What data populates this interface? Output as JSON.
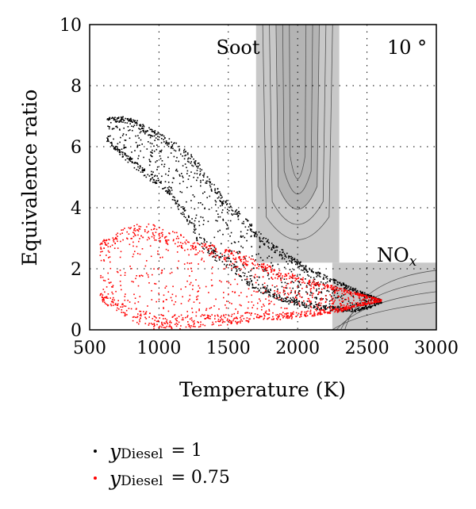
{
  "chart_data": {
    "type": "scatter",
    "title": "",
    "xlabel": "Temperature (K)",
    "ylabel": "Equivalence ratio",
    "xlim": [
      500,
      3000
    ],
    "ylim": [
      0,
      10
    ],
    "xticks": [
      "500",
      "1000",
      "1500",
      "2000",
      "2500",
      "3000"
    ],
    "yticks": [
      "0",
      "2",
      "4",
      "6",
      "8",
      "10"
    ],
    "grid": true,
    "grid_style": "dotted",
    "annotations": {
      "soot": "Soot",
      "angle": "10 °",
      "nox_main": "NO",
      "nox_sub": "x"
    },
    "regions": [
      {
        "name": "Soot",
        "x_range": [
          1700,
          2300
        ],
        "y_range": [
          2.2,
          10
        ],
        "color": "#c8c8c8"
      },
      {
        "name": "NOx",
        "x_range": [
          2250,
          3000
        ],
        "y_range": [
          0,
          2.2
        ],
        "color": "#c8c8c8"
      }
    ],
    "series": [
      {
        "name_main": "y",
        "name_sub": "Diesel",
        "name_value": "= 1",
        "color": "#000000",
        "envelope": {
          "T": [
            620,
            700,
            800,
            900,
            1000,
            1100,
            1200,
            1300,
            1400,
            1500,
            1600,
            1700,
            1800,
            1900,
            2000,
            2100,
            2200,
            2300,
            2400,
            2500,
            2600
          ],
          "upper": [
            7.0,
            7.0,
            7.0,
            6.7,
            6.5,
            6.2,
            5.9,
            5.4,
            4.8,
            4.2,
            3.8,
            3.3,
            2.9,
            2.6,
            2.3,
            2.0,
            1.8,
            1.6,
            1.4,
            1.2,
            1.0
          ],
          "lower": [
            6.2,
            5.8,
            5.4,
            5.0,
            4.7,
            4.2,
            3.5,
            2.7,
            2.3,
            2.0,
            1.6,
            1.3,
            1.1,
            0.9,
            0.8,
            0.7,
            0.65,
            0.6,
            0.6,
            0.7,
            0.9
          ]
        }
      },
      {
        "name_main": "y",
        "name_sub": "Diesel",
        "name_value": "= 0.75",
        "color": "#ff0000",
        "envelope": {
          "T": [
            570,
            650,
            750,
            850,
            950,
            1050,
            1150,
            1250,
            1400,
            1550,
            1700,
            1850,
            2000,
            2150,
            2300,
            2450,
            2600
          ],
          "upper": [
            2.9,
            3.1,
            3.4,
            3.5,
            3.5,
            3.3,
            3.2,
            2.9,
            2.8,
            2.6,
            2.3,
            2.0,
            1.8,
            1.6,
            1.4,
            1.2,
            1.0
          ],
          "lower": [
            1.0,
            0.7,
            0.4,
            0.2,
            0.05,
            0.05,
            0.05,
            0.1,
            0.15,
            0.2,
            0.3,
            0.35,
            0.4,
            0.5,
            0.6,
            0.8,
            0.95
          ]
        }
      }
    ]
  }
}
